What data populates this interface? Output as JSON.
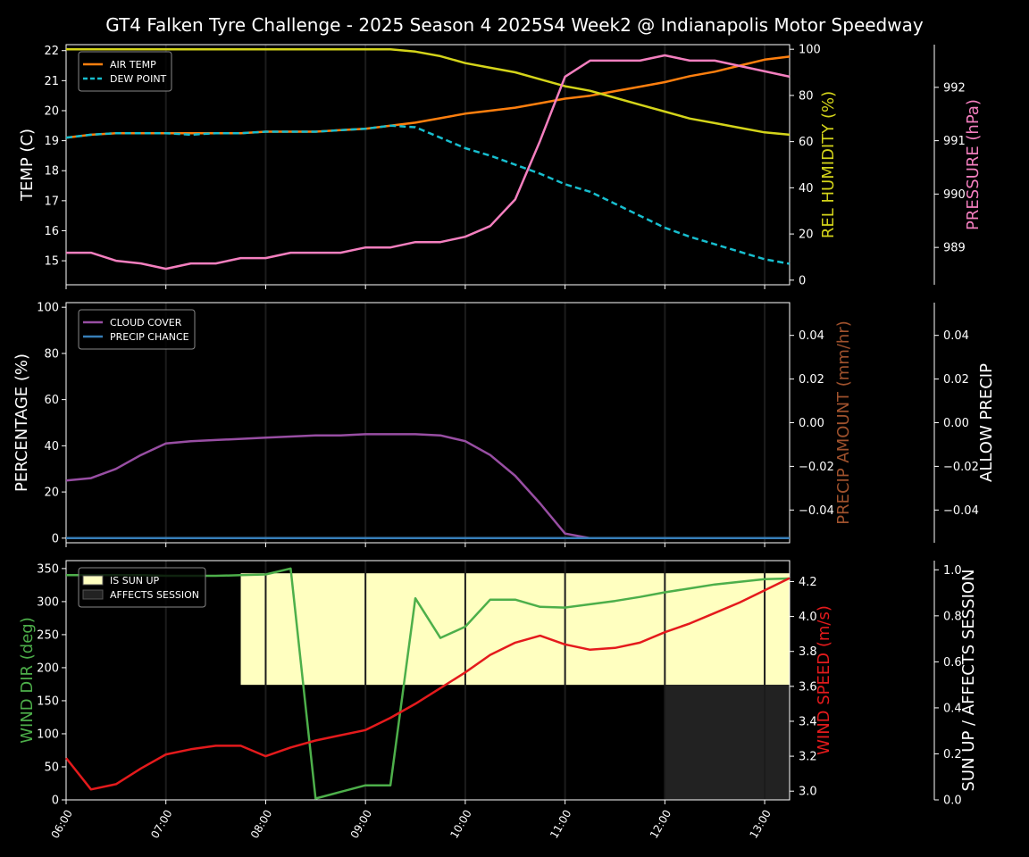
{
  "title": "GT4 Falken Tyre Challenge - 2025 Season 4 2025S4 Week2 @ Indianapolis Motor Speedway",
  "colors": {
    "background": "#000000",
    "axes": "#ffffff",
    "air_temp": "#ff7f0e",
    "dew_point": "#17becf",
    "rel_humidity": "#d4d41a",
    "pressure": "#f47fbf",
    "cloud_cover": "#984ea3",
    "precip_chance": "#377eb8",
    "precip_amount_label": "#a0522d",
    "wind_dir": "#4daf4a",
    "wind_speed": "#e41a1c",
    "sun_up": "#ffffc0",
    "affects_session": "#222222"
  },
  "chart_data": [
    {
      "type": "line",
      "panel": "temperature",
      "x_ticks": [
        "06:00",
        "07:00",
        "08:00",
        "09:00",
        "10:00",
        "11:00",
        "12:00",
        "13:00"
      ],
      "x": [
        6.0,
        6.25,
        6.5,
        6.75,
        7.0,
        7.25,
        7.5,
        7.75,
        8.0,
        8.25,
        8.5,
        8.75,
        9.0,
        9.25,
        9.5,
        9.75,
        10.0,
        10.25,
        10.5,
        10.75,
        11.0,
        11.25,
        11.5,
        11.75,
        12.0,
        12.25,
        12.5,
        12.75,
        13.0,
        13.25
      ],
      "xlim": [
        6.0,
        13.25
      ],
      "ylabel": "TEMP (C)",
      "ylim": [
        14.2,
        22.2
      ],
      "yticks": [
        15,
        16,
        17,
        18,
        19,
        20,
        21,
        22
      ],
      "ylabel_right": "REL HUMIDITY (%)",
      "ylim_right": [
        -2,
        102
      ],
      "yticks_right": [
        0,
        20,
        40,
        60,
        80,
        100
      ],
      "ylabel_far": "PRESSURE (hPa)",
      "ylim_far": [
        988.3,
        992.8
      ],
      "yticks_far": [
        989,
        990,
        991,
        992
      ],
      "legend": "upper-left",
      "series": [
        {
          "name": "AIR TEMP",
          "axis": "left",
          "style": "solid",
          "color_key": "air_temp",
          "values": [
            19.1,
            19.2,
            19.25,
            19.25,
            19.25,
            19.25,
            19.25,
            19.25,
            19.3,
            19.3,
            19.3,
            19.35,
            19.4,
            19.5,
            19.6,
            19.75,
            19.9,
            20.0,
            20.1,
            20.25,
            20.4,
            20.5,
            20.65,
            20.8,
            20.95,
            21.15,
            21.3,
            21.5,
            21.7,
            21.8
          ]
        },
        {
          "name": "DEW POINT",
          "axis": "left",
          "style": "dashed",
          "color_key": "dew_point",
          "values": [
            19.1,
            19.2,
            19.25,
            19.25,
            19.25,
            19.2,
            19.25,
            19.25,
            19.3,
            19.3,
            19.3,
            19.35,
            19.4,
            19.5,
            19.45,
            19.1,
            18.75,
            18.5,
            18.2,
            17.9,
            17.55,
            17.3,
            16.9,
            16.5,
            16.1,
            15.8,
            15.55,
            15.3,
            15.05,
            14.9
          ]
        },
        {
          "name": "REL HUMIDITY",
          "axis": "right",
          "style": "solid",
          "color_key": "rel_humidity",
          "in_legend": false,
          "values": [
            100,
            100,
            100,
            100,
            100,
            100,
            100,
            100,
            100,
            100,
            100,
            100,
            100,
            100,
            99,
            97,
            94,
            92,
            90,
            87,
            84,
            82,
            79,
            76,
            73,
            70,
            68,
            66,
            64,
            63
          ]
        },
        {
          "name": "PRESSURE",
          "axis": "far",
          "style": "solid",
          "color_key": "pressure",
          "in_legend": false,
          "values": [
            988.9,
            988.9,
            988.75,
            988.7,
            988.6,
            988.7,
            988.7,
            988.8,
            988.8,
            988.9,
            988.9,
            988.9,
            989.0,
            989.0,
            989.1,
            989.1,
            989.2,
            989.4,
            989.9,
            991.0,
            992.2,
            992.5,
            992.5,
            992.5,
            992.6,
            992.5,
            992.5,
            992.4,
            992.3,
            992.2
          ]
        }
      ]
    },
    {
      "type": "line",
      "panel": "precipitation",
      "x": [
        6.0,
        6.25,
        6.5,
        6.75,
        7.0,
        7.25,
        7.5,
        7.75,
        8.0,
        8.25,
        8.5,
        8.75,
        9.0,
        9.25,
        9.5,
        9.75,
        10.0,
        10.25,
        10.5,
        10.75,
        11.0,
        11.25,
        11.5,
        11.75,
        12.0,
        12.25,
        12.5,
        12.75,
        13.0,
        13.25
      ],
      "xlim": [
        6.0,
        13.25
      ],
      "ylabel": "PERCENTAGE (%)",
      "ylim": [
        -2,
        102
      ],
      "yticks": [
        0,
        20,
        40,
        60,
        80,
        100
      ],
      "ylabel_right": "PRECIP AMOUNT (mm/hr)",
      "ylim_right": [
        -0.055,
        0.055
      ],
      "yticks_right": [
        "−0.04",
        "−0.02",
        "0.00",
        "0.02",
        "0.04"
      ],
      "ylabel_far": "ALLOW PRECIP",
      "ylim_far": [
        -0.055,
        0.055
      ],
      "yticks_far": [
        "−0.04",
        "−0.02",
        "0.00",
        "0.02",
        "0.04"
      ],
      "legend": "upper-left",
      "series": [
        {
          "name": "CLOUD COVER",
          "color_key": "cloud_cover",
          "values": [
            25,
            26,
            30,
            36,
            41,
            42,
            42.5,
            43,
            43.5,
            44,
            44.5,
            44.5,
            45,
            45,
            45,
            44.5,
            42,
            36,
            27,
            15,
            2,
            0,
            0,
            0,
            0,
            0,
            0,
            0,
            0,
            0
          ]
        },
        {
          "name": "PRECIP CHANCE",
          "color_key": "precip_chance",
          "values": [
            0,
            0,
            0,
            0,
            0,
            0,
            0,
            0,
            0,
            0,
            0,
            0,
            0,
            0,
            0,
            0,
            0,
            0,
            0,
            0,
            0,
            0,
            0,
            0,
            0,
            0,
            0,
            0,
            0,
            0
          ]
        }
      ]
    },
    {
      "type": "line",
      "panel": "wind",
      "x": [
        6.0,
        6.25,
        6.5,
        6.75,
        7.0,
        7.25,
        7.5,
        7.75,
        8.0,
        8.25,
        8.5,
        8.75,
        9.0,
        9.25,
        9.5,
        9.75,
        10.0,
        10.25,
        10.5,
        10.75,
        11.0,
        11.25,
        11.5,
        11.75,
        12.0,
        12.25,
        12.5,
        12.75,
        13.0,
        13.25
      ],
      "xlim": [
        6.0,
        13.25
      ],
      "x_ticks": [
        "06:00",
        "07:00",
        "08:00",
        "09:00",
        "10:00",
        "11:00",
        "12:00",
        "13:00"
      ],
      "ylabel": "WIND DIR (deg)",
      "ylim": [
        0,
        362
      ],
      "yticks": [
        0,
        50,
        100,
        150,
        200,
        250,
        300,
        350
      ],
      "ylabel_right": "WIND SPEED (m/s)",
      "ylim_right": [
        2.95,
        4.32
      ],
      "yticks_right": [
        "3.0",
        "3.2",
        "3.4",
        "3.6",
        "3.8",
        "4.0",
        "4.2"
      ],
      "ylabel_far": "SUN UP / AFFECTS SESSION",
      "ylim_far": [
        0,
        1.04
      ],
      "yticks_far": [
        "0.0",
        "0.2",
        "0.4",
        "0.6",
        "0.8",
        "1.0"
      ],
      "legend": "upper-left",
      "bands": [
        {
          "name": "IS SUN UP",
          "color_key": "sun_up",
          "x_start": 7.75,
          "x_end": 13.25,
          "y_low": 0.5,
          "y_high": 0.985
        },
        {
          "name": "AFFECTS SESSION",
          "color_key": "affects_session",
          "x_start": 12.0,
          "x_end": 13.25,
          "y_low": 0.0,
          "y_high": 0.5
        }
      ],
      "series": [
        {
          "name": "WIND DIR",
          "axis": "left",
          "color_key": "wind_dir",
          "in_legend": false,
          "values": [
            340,
            340,
            340,
            340,
            339,
            339,
            339,
            340,
            341,
            350,
            2,
            12,
            22,
            22,
            305,
            245,
            262,
            303,
            303,
            292,
            291,
            296,
            301,
            307,
            314,
            320,
            326,
            330,
            334,
            335
          ]
        },
        {
          "name": "WIND SPEED",
          "axis": "right",
          "color_key": "wind_speed",
          "in_legend": false,
          "values": [
            3.19,
            3.01,
            3.04,
            3.13,
            3.21,
            3.24,
            3.26,
            3.26,
            3.2,
            3.25,
            3.29,
            3.32,
            3.35,
            3.42,
            3.5,
            3.59,
            3.68,
            3.78,
            3.85,
            3.89,
            3.84,
            3.81,
            3.82,
            3.85,
            3.91,
            3.96,
            4.02,
            4.08,
            4.15,
            4.22
          ]
        }
      ]
    }
  ]
}
